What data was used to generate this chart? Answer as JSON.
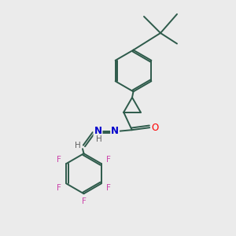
{
  "bg_color": "#ebebeb",
  "bond_color": "#2d5a4a",
  "line_width": 1.4,
  "atom_colors": {
    "O": "#ff0000",
    "N": "#0000cc",
    "F": "#cc44aa",
    "H": "#606060",
    "C": "#2d5a4a"
  },
  "figsize": [
    3.0,
    3.0
  ],
  "dpi": 100
}
